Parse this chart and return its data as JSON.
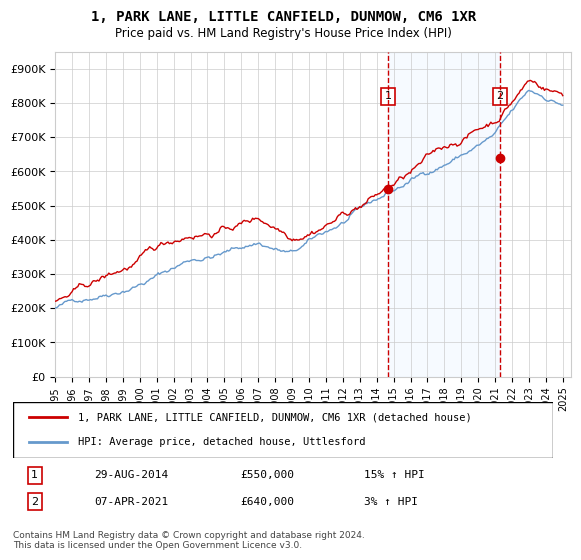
{
  "title": "1, PARK LANE, LITTLE CANFIELD, DUNMOW, CM6 1XR",
  "subtitle": "Price paid vs. HM Land Registry's House Price Index (HPI)",
  "ylabel": "",
  "ylim": [
    0,
    950000
  ],
  "yticks": [
    0,
    100000,
    200000,
    300000,
    400000,
    500000,
    600000,
    700000,
    800000,
    900000
  ],
  "ytick_labels": [
    "£0",
    "£100K",
    "£200K",
    "£300K",
    "£400K",
    "£500K",
    "£600K",
    "£700K",
    "£800K",
    "£900K"
  ],
  "x_start_year": 1995,
  "x_end_year": 2025,
  "sale1_date": "29-AUG-2014",
  "sale1_price": 550000,
  "sale1_pct": "15%",
  "sale1_label": "1",
  "sale1_year": 2014.66,
  "sale2_date": "07-APR-2021",
  "sale2_price": 640000,
  "sale2_pct": "3%",
  "sale2_label": "2",
  "sale2_year": 2021.27,
  "legend_red": "1, PARK LANE, LITTLE CANFIELD, DUNMOW, CM6 1XR (detached house)",
  "legend_blue": "HPI: Average price, detached house, Uttlesford",
  "footnote": "Contains HM Land Registry data © Crown copyright and database right 2024.\nThis data is licensed under the Open Government Licence v3.0.",
  "red_color": "#cc0000",
  "blue_color": "#6699cc",
  "shading_color": "#ddeeff",
  "grid_color": "#cccccc",
  "dashed_line_color": "#cc0000",
  "background_color": "#ffffff"
}
